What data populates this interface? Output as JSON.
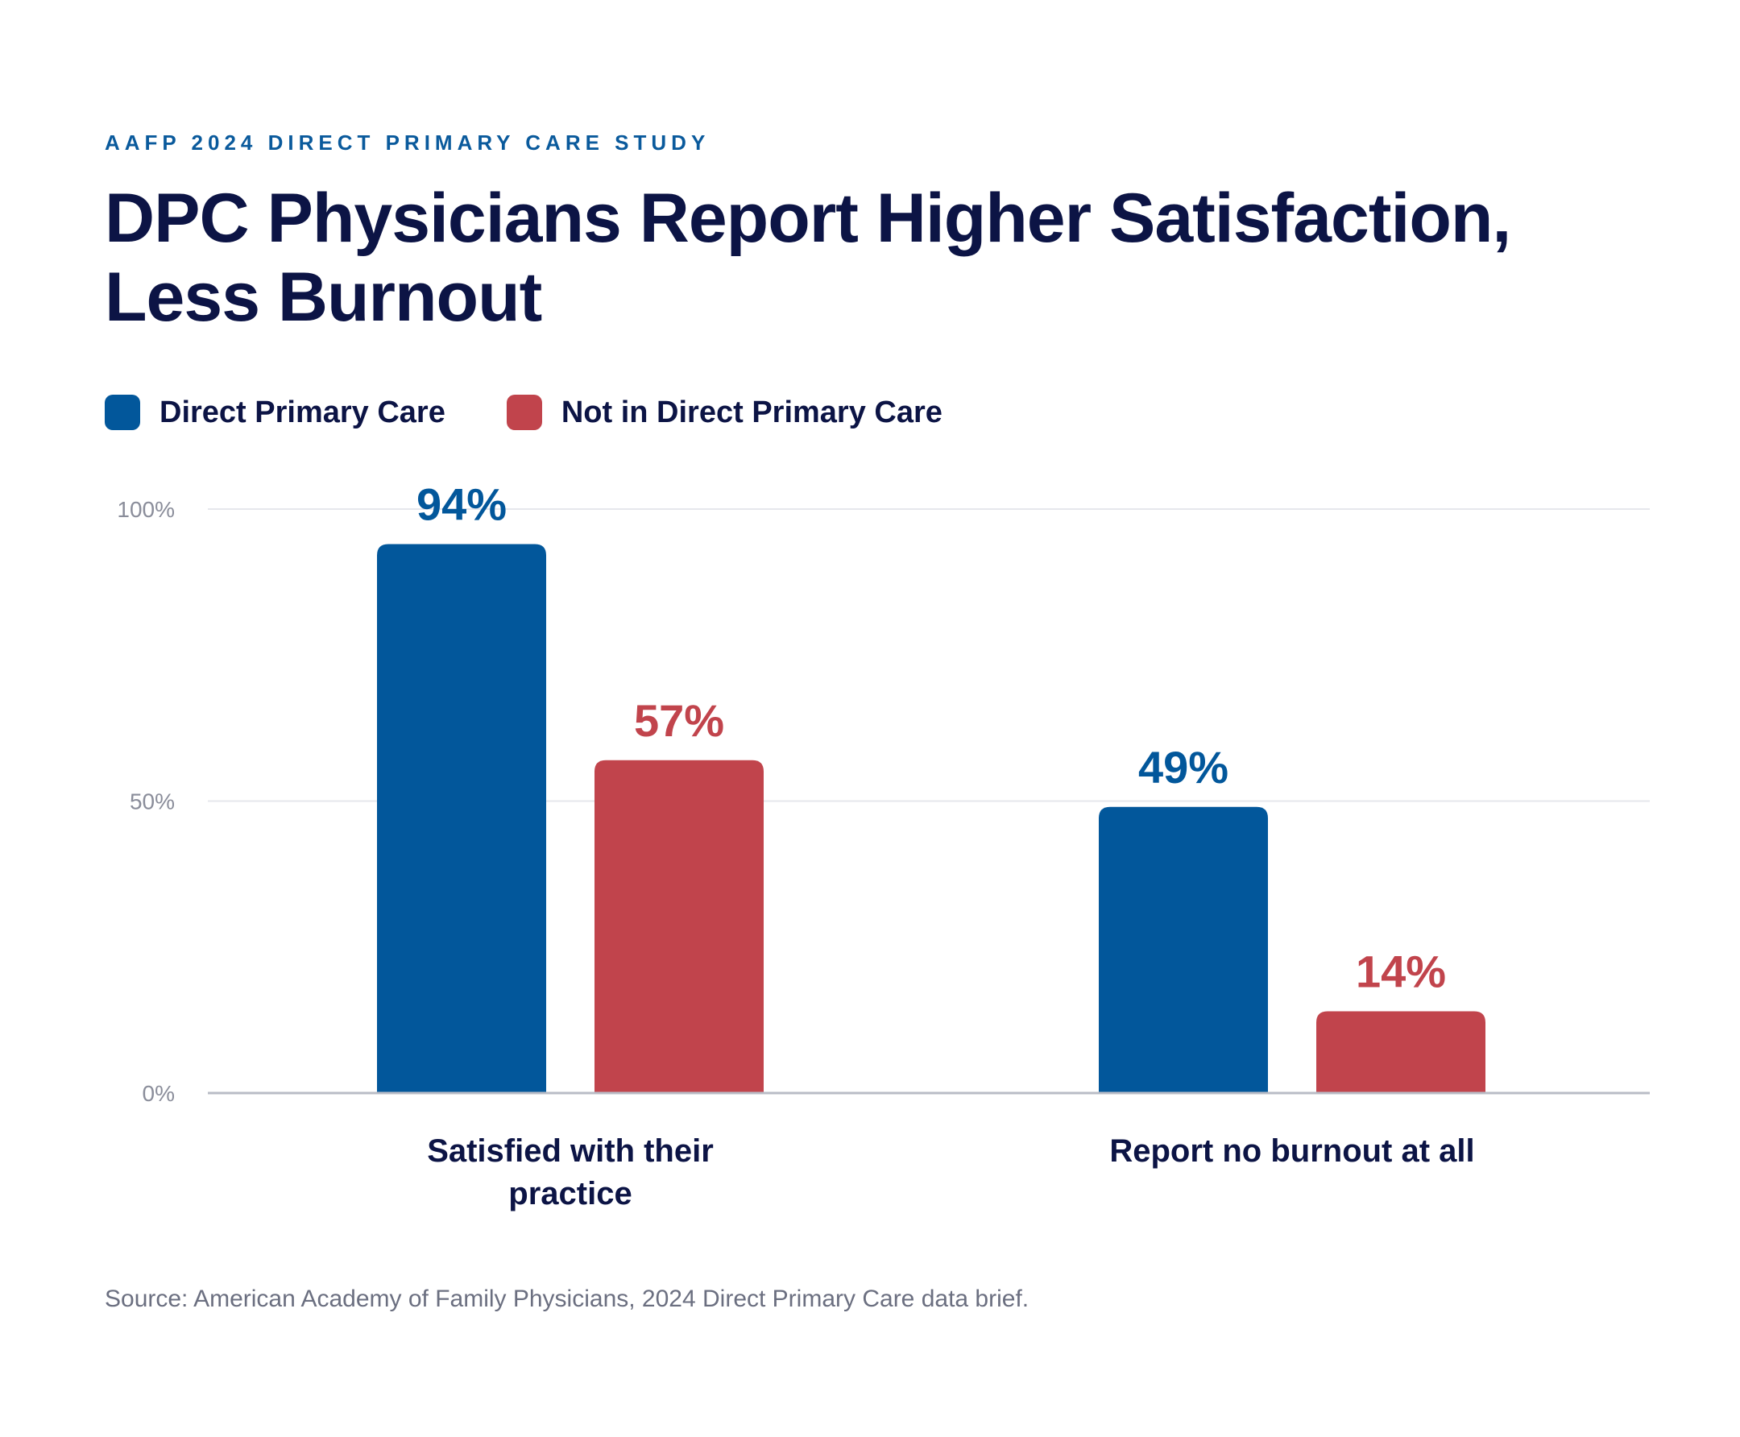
{
  "header": {
    "eyebrow": "AAFP 2024 DIRECT PRIMARY CARE STUDY",
    "title": "DPC Physicians Report Higher Satisfaction, Less Burnout"
  },
  "legend": [
    {
      "label": "Direct Primary Care",
      "color": "#02579b"
    },
    {
      "label": "Not in Direct Primary Care",
      "color": "#c1444c"
    }
  ],
  "chart_data": {
    "type": "bar",
    "categories": [
      [
        "Satisfied with their",
        "practice"
      ],
      [
        "Report no burnout at all"
      ]
    ],
    "series": [
      {
        "name": "Direct Primary Care",
        "color": "#02579b",
        "values": [
          94,
          49
        ],
        "labels": [
          "94%",
          "49%"
        ]
      },
      {
        "name": "Not in Direct Primary Care",
        "color": "#c1444c",
        "values": [
          57,
          14
        ],
        "labels": [
          "57%",
          "14%"
        ]
      }
    ],
    "ylim": [
      0,
      100
    ],
    "yticks": [
      0,
      50,
      100
    ],
    "ytick_labels": [
      "0%",
      "50%",
      "100%"
    ],
    "grid": true,
    "legend_position": "top-left"
  },
  "footer": {
    "source": "Source: American Academy of Family Physicians, 2024 Direct Primary Care data brief."
  }
}
